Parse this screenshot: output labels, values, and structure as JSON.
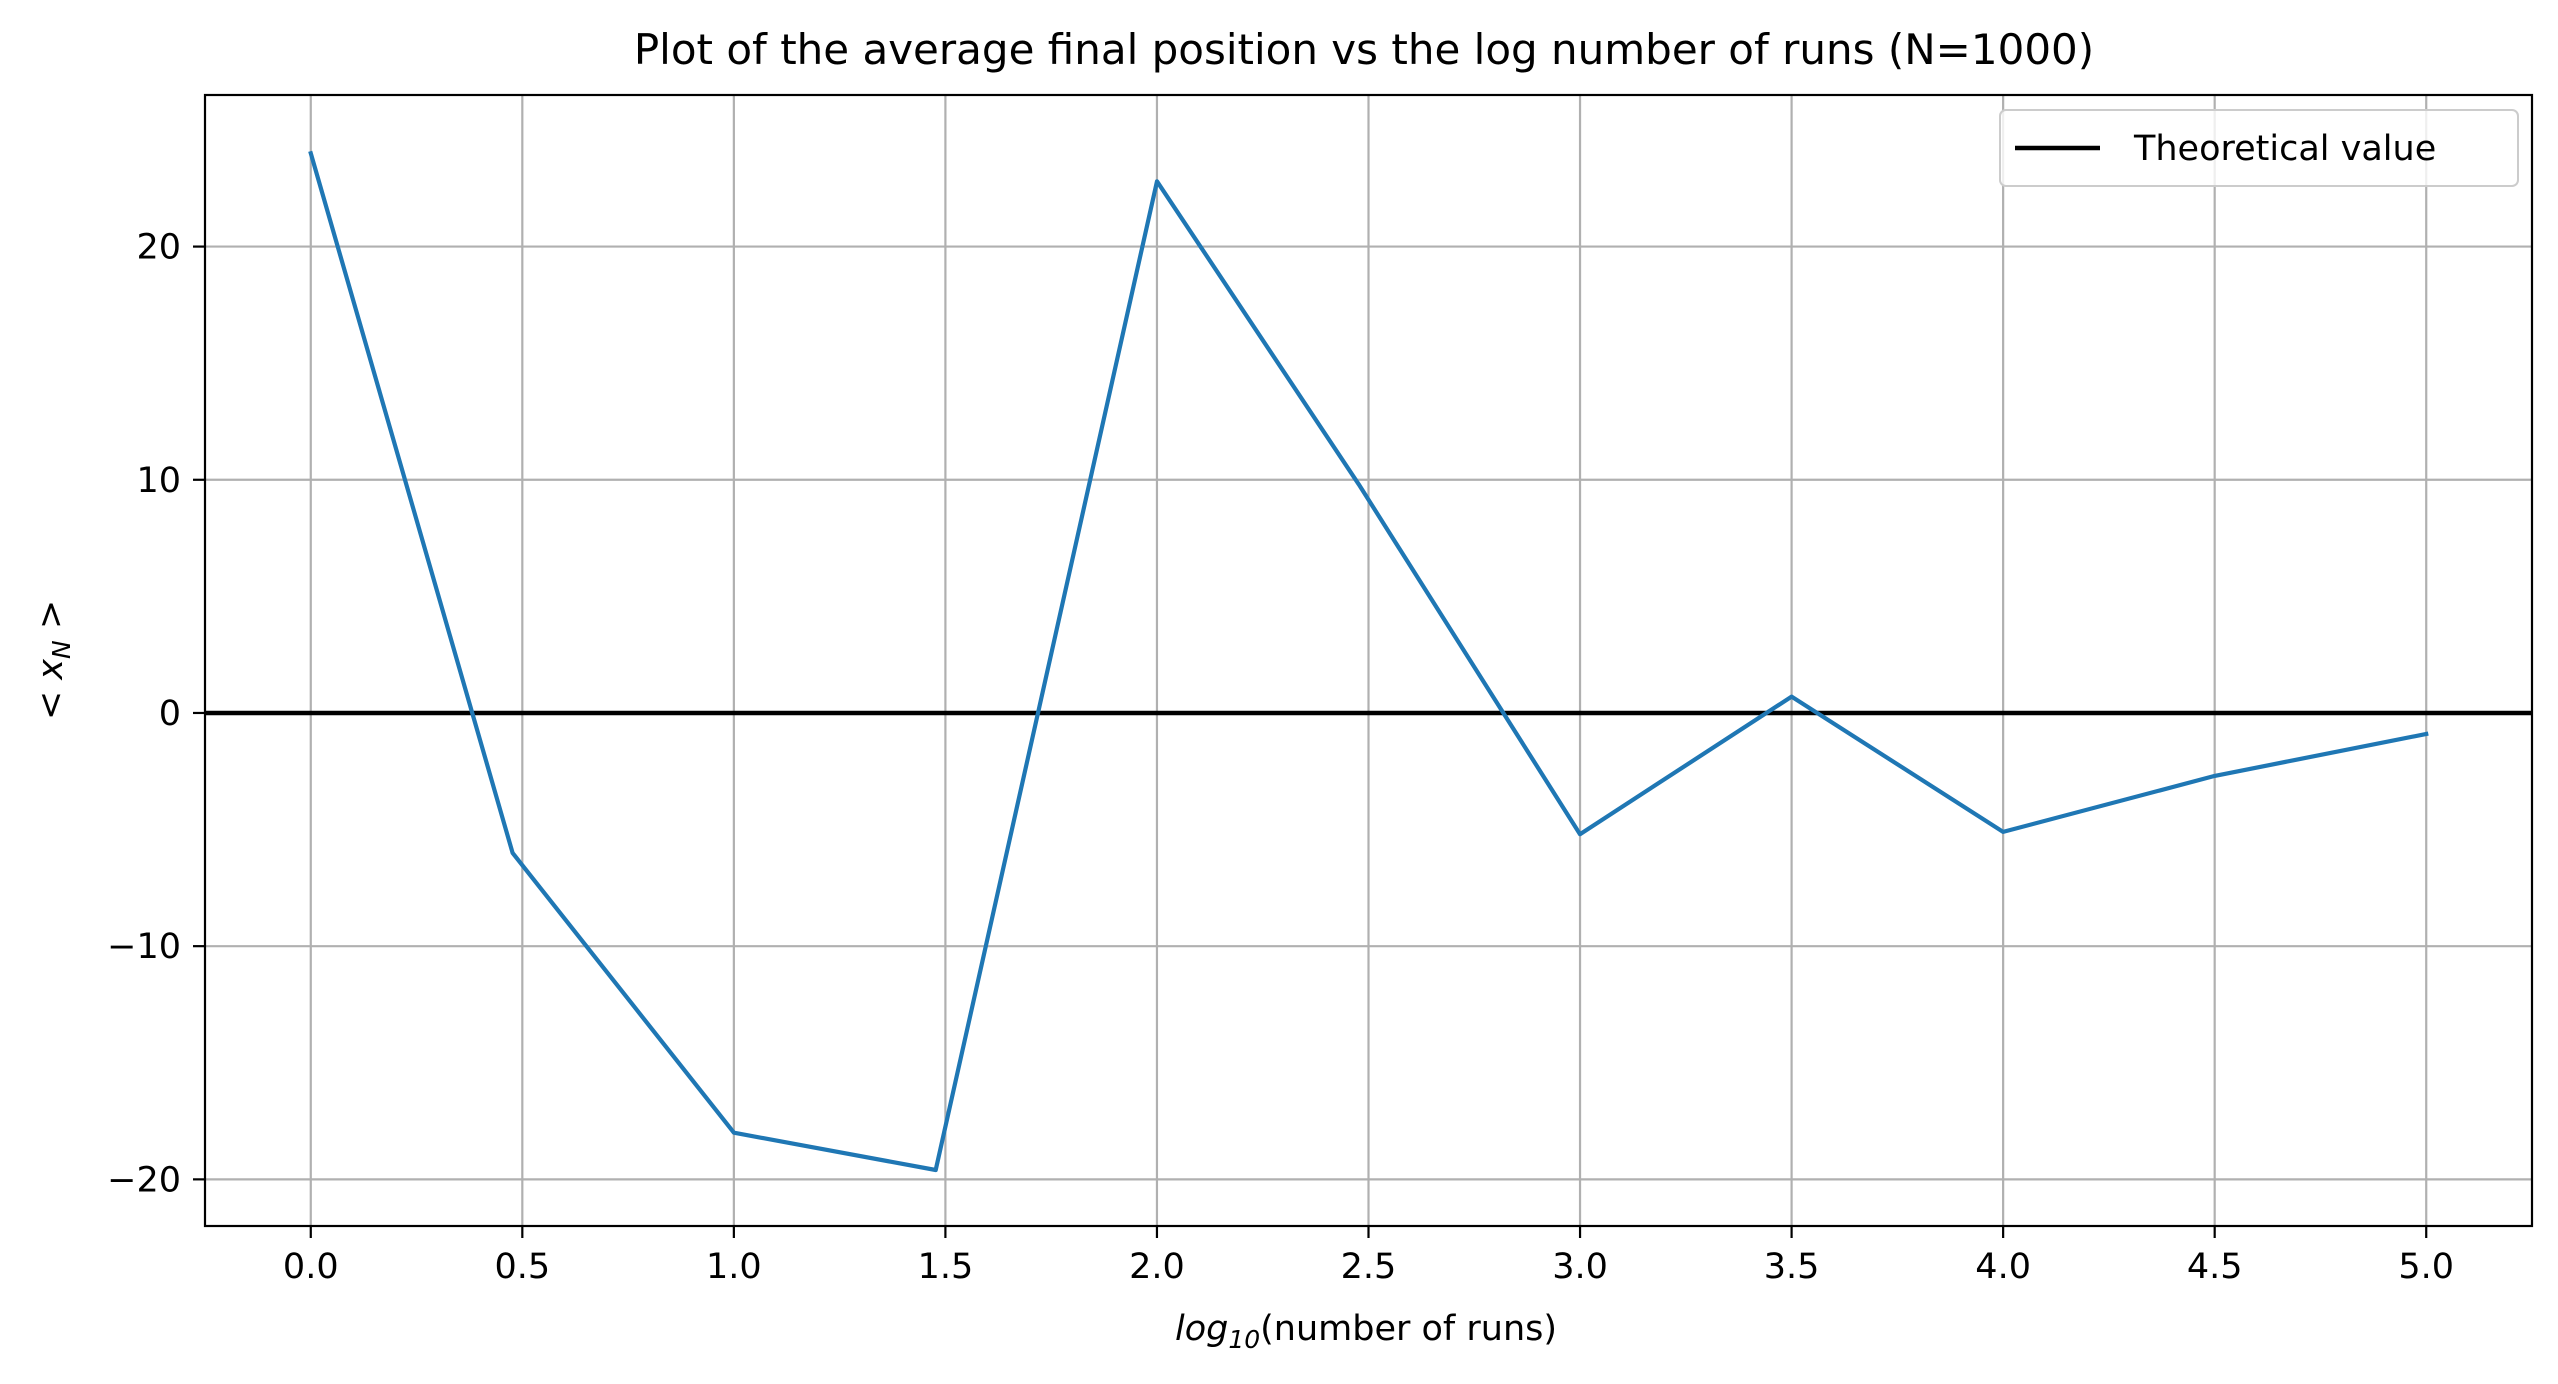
{
  "chart_data": {
    "type": "line",
    "title": "Plot of the average final position vs the log number of runs (N=1000)",
    "xlabel": {
      "math": "log",
      "subscript": "10",
      "text": "(number of runs)"
    },
    "ylabel": {
      "left": "< ",
      "var": "x",
      "subscript": "N",
      "right": " >"
    },
    "xlim": [
      -0.25,
      5.25
    ],
    "ylim": [
      -22,
      26.5
    ],
    "xticks": [
      0.0,
      0.5,
      1.0,
      1.5,
      2.0,
      2.5,
      3.0,
      3.5,
      4.0,
      4.5,
      5.0
    ],
    "xtick_labels": [
      "0.0",
      "0.5",
      "1.0",
      "1.5",
      "2.0",
      "2.5",
      "3.0",
      "3.5",
      "4.0",
      "4.5",
      "5.0"
    ],
    "yticks": [
      -20,
      -10,
      0,
      10,
      20
    ],
    "ytick_labels": [
      "−20",
      "−10",
      "0",
      "10",
      "20"
    ],
    "grid": true,
    "legend_position": "top-right",
    "series": [
      {
        "color": "#1f77b4",
        "x": [
          0.0,
          0.477,
          1.0,
          1.477,
          2.0,
          2.477,
          3.0,
          3.5,
          4.0,
          4.5,
          5.0
        ],
        "y": [
          24.0,
          -6.0,
          -18.0,
          -19.6,
          22.8,
          9.8,
          -5.2,
          0.7,
          -5.1,
          -2.7,
          -0.9
        ]
      }
    ],
    "reference_line": {
      "name": "Theoretical value",
      "y": 0,
      "color": "#000000"
    }
  }
}
